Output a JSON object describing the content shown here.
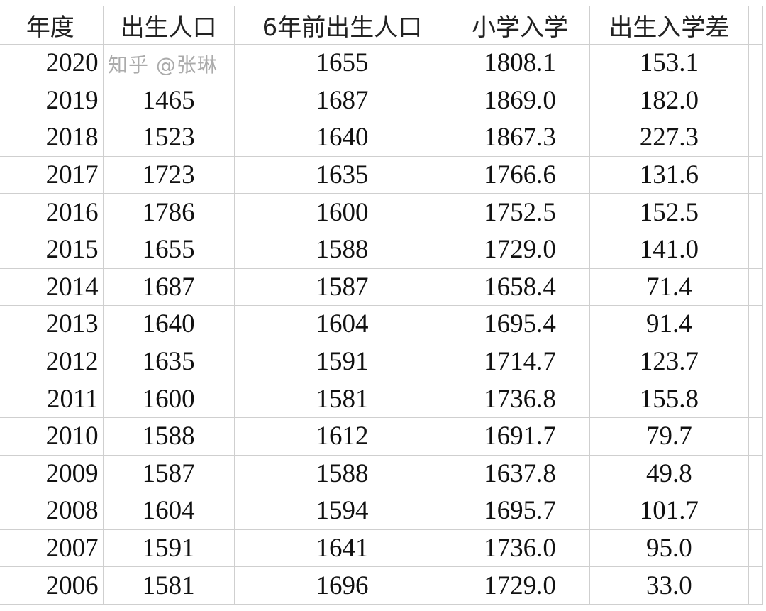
{
  "headers": [
    "年度",
    "出生人口",
    "6年前出生人口",
    "小学入学",
    "出生入学差"
  ],
  "rows": [
    [
      "2020",
      "",
      "1655",
      "1808.1",
      "153.1"
    ],
    [
      "2019",
      "1465",
      "1687",
      "1869.0",
      "182.0"
    ],
    [
      "2018",
      "1523",
      "1640",
      "1867.3",
      "227.3"
    ],
    [
      "2017",
      "1723",
      "1635",
      "1766.6",
      "131.6"
    ],
    [
      "2016",
      "1786",
      "1600",
      "1752.5",
      "152.5"
    ],
    [
      "2015",
      "1655",
      "1588",
      "1729.0",
      "141.0"
    ],
    [
      "2014",
      "1687",
      "1587",
      "1658.4",
      "71.4"
    ],
    [
      "2013",
      "1640",
      "1604",
      "1695.4",
      "91.4"
    ],
    [
      "2012",
      "1635",
      "1591",
      "1714.7",
      "123.7"
    ],
    [
      "2011",
      "1600",
      "1581",
      "1736.8",
      "155.8"
    ],
    [
      "2010",
      "1588",
      "1612",
      "1691.7",
      "79.7"
    ],
    [
      "2009",
      "1587",
      "1588",
      "1637.8",
      "49.8"
    ],
    [
      "2008",
      "1604",
      "1594",
      "1695.7",
      "101.7"
    ],
    [
      "2007",
      "1591",
      "1641",
      "1736.0",
      "95.0"
    ],
    [
      "2006",
      "1581",
      "1696",
      "1729.0",
      "33.0"
    ]
  ],
  "watermark": "知乎 @张琳"
}
